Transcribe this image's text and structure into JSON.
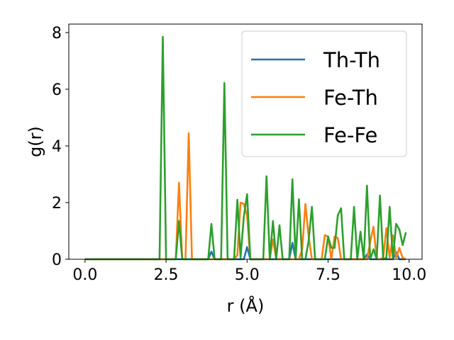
{
  "chart_data": {
    "type": "line",
    "title": "",
    "xlabel": "r (Å)",
    "ylabel": "g(r)",
    "xlim": [
      -0.5,
      10.4
    ],
    "ylim": [
      0,
      8.3
    ],
    "xticks": [
      0,
      2.5,
      5,
      7.5,
      10
    ],
    "xtick_labels": [
      "0.0",
      "2.5",
      "5.0",
      "7.5",
      "10.0"
    ],
    "yticks": [
      0,
      2,
      4,
      6,
      8
    ],
    "ytick_labels": [
      "0",
      "2",
      "4",
      "6",
      "8"
    ],
    "grid": false,
    "legend_position": "top-right",
    "series": [
      {
        "name": "Th-Th",
        "color": "#1f77b4",
        "x": [
          0,
          2.3,
          3.8,
          3.9,
          4.0,
          4.9,
          5.0,
          5.1,
          6.3,
          6.4,
          6.5,
          8.6,
          8.7,
          8.8,
          9.5,
          9.6,
          9.7,
          9.9
        ],
        "y": [
          0,
          0,
          0,
          0.27,
          0,
          0,
          0.43,
          0,
          0,
          0.58,
          0,
          0,
          0.17,
          0,
          0,
          0.25,
          0,
          0
        ]
      },
      {
        "name": "Fe-Th",
        "color": "#ff7f0e",
        "x": [
          0,
          2.3,
          2.8,
          2.9,
          3.0,
          3.1,
          3.2,
          3.3,
          4.6,
          4.7,
          4.8,
          4.9,
          5.0,
          5.1,
          5.7,
          5.8,
          5.9,
          6.6,
          6.7,
          6.8,
          6.9,
          7.0,
          7.1,
          7.3,
          7.4,
          7.5,
          7.6,
          7.7,
          7.8,
          7.9,
          8.0,
          8.7,
          8.8,
          8.9,
          9.0,
          9.1,
          9.2,
          9.3,
          9.4,
          9.5,
          9.6,
          9.7,
          9.8,
          9.9
        ],
        "y": [
          0,
          0,
          0,
          2.7,
          0,
          0,
          4.45,
          0,
          0,
          0.15,
          2.0,
          1.95,
          1.55,
          0,
          0,
          0.7,
          0,
          0,
          0.35,
          1.95,
          0.8,
          0,
          0,
          0,
          0.85,
          0.8,
          0,
          0.8,
          0.75,
          0,
          0,
          0,
          0.6,
          1.15,
          0,
          0,
          0.05,
          1.1,
          0.05,
          0.85,
          0.05,
          0.4,
          0.05,
          0
        ]
      },
      {
        "name": "Fe-Fe",
        "color": "#2ca02c",
        "x": [
          0,
          2.3,
          2.4,
          2.5,
          2.8,
          2.9,
          3.0,
          3.8,
          3.9,
          4.0,
          4.2,
          4.3,
          4.4,
          4.6,
          4.7,
          4.8,
          4.9,
          5.0,
          5.1,
          5.5,
          5.6,
          5.7,
          5.8,
          5.9,
          6.0,
          6.1,
          6.2,
          6.3,
          6.4,
          6.5,
          6.6,
          6.7,
          6.8,
          6.9,
          7.0,
          7.1,
          7.4,
          7.5,
          7.6,
          7.7,
          7.8,
          7.9,
          8.0,
          8.2,
          8.3,
          8.4,
          8.5,
          8.6,
          8.7,
          8.8,
          8.9,
          9.0,
          9.1,
          9.2,
          9.3,
          9.4,
          9.5,
          9.6,
          9.7,
          9.8,
          9.9
        ],
        "y": [
          0,
          0,
          7.85,
          0,
          0,
          1.35,
          0,
          0,
          1.25,
          0,
          0,
          6.22,
          0,
          0,
          2.1,
          0.05,
          1.5,
          2.3,
          0,
          0,
          2.93,
          0,
          1.35,
          0,
          1.2,
          0,
          0,
          0,
          2.82,
          0,
          2.12,
          0,
          0,
          0.65,
          1.85,
          0,
          0,
          0.8,
          0.4,
          0.4,
          1.55,
          1.8,
          0,
          0,
          1.85,
          0,
          0.97,
          0,
          2.6,
          0,
          0.35,
          0,
          2.25,
          0,
          0.05,
          1.85,
          0,
          1.25,
          1.05,
          0.5,
          0.95
        ]
      }
    ]
  }
}
